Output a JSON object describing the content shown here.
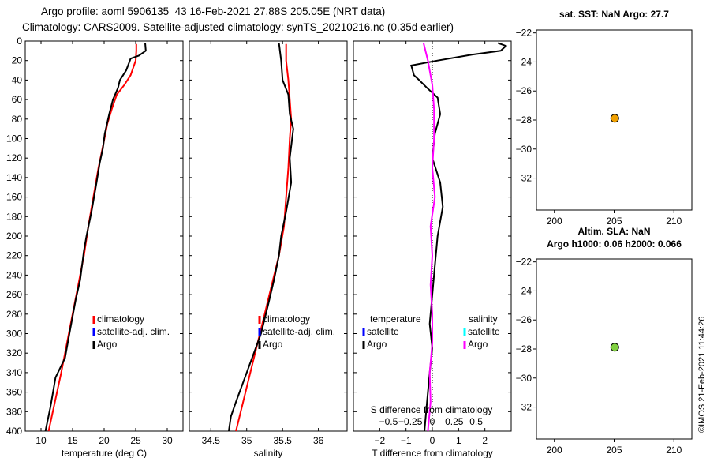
{
  "header": {
    "title_line1": "Argo profile: aoml 5906135_43 16-Feb-2021 27.88S 205.05E (NRT data)",
    "title_line2": "Climatology: CARS2009. Satellite-adjusted climatology: synTS_20210216.nc (0.35d earlier)"
  },
  "watermark": "©IMOS 21-Feb-2021 11:44:26",
  "chart_data": [
    {
      "type": "line",
      "id": "temperature",
      "xlabel": "temperature (deg C)",
      "ylabel": "",
      "xlim": [
        7.5,
        32.5
      ],
      "ylim": [
        400,
        0
      ],
      "xticks": [
        10,
        15,
        20,
        25,
        30
      ],
      "yticks": [
        0,
        20,
        40,
        60,
        80,
        100,
        120,
        140,
        160,
        180,
        200,
        220,
        240,
        260,
        280,
        300,
        320,
        340,
        360,
        380,
        400
      ],
      "legend": [
        "climatology",
        "satellite-adj. clim.",
        "Argo"
      ],
      "legend_colors": [
        "#ff0000",
        "#0000ff",
        "#000000"
      ],
      "series": [
        {
          "name": "climatology",
          "color": "#ff0000",
          "points": [
            [
              25.1,
              3
            ],
            [
              25.1,
              10
            ],
            [
              25.0,
              20
            ],
            [
              24.2,
              35
            ],
            [
              23.2,
              45
            ],
            [
              22.0,
              55
            ],
            [
              21.2,
              70
            ],
            [
              20.5,
              85
            ],
            [
              19.9,
              105
            ],
            [
              19.1,
              130
            ],
            [
              18.3,
              160
            ],
            [
              17.5,
              190
            ],
            [
              16.8,
              220
            ],
            [
              15.9,
              250
            ],
            [
              15.0,
              280
            ],
            [
              14.1,
              310
            ],
            [
              13.2,
              340
            ],
            [
              12.2,
              370
            ],
            [
              11.2,
              400
            ]
          ]
        },
        {
          "name": "Argo",
          "color": "#000000",
          "points": [
            [
              26.5,
              2
            ],
            [
              26.6,
              10
            ],
            [
              25.5,
              15
            ],
            [
              24.2,
              18
            ],
            [
              23.5,
              30
            ],
            [
              22.5,
              40
            ],
            [
              22.2,
              48
            ],
            [
              21.4,
              60
            ],
            [
              20.8,
              75
            ],
            [
              20.1,
              95
            ],
            [
              19.8,
              110
            ],
            [
              19.3,
              125
            ],
            [
              18.8,
              145
            ],
            [
              18.0,
              175
            ],
            [
              17.2,
              200
            ],
            [
              16.8,
              215
            ],
            [
              16.2,
              245
            ],
            [
              15.5,
              265
            ],
            [
              14.5,
              300
            ],
            [
              13.8,
              325
            ],
            [
              12.3,
              345
            ],
            [
              11.5,
              375
            ],
            [
              10.7,
              400
            ]
          ]
        }
      ]
    },
    {
      "type": "line",
      "id": "salinity",
      "xlabel": "salinity",
      "xlim": [
        34.2,
        36.4
      ],
      "ylim": [
        400,
        0
      ],
      "xticks": [
        34.5,
        35,
        35.5,
        36
      ],
      "legend": [
        "climatology",
        "satellite-adj. clim.",
        "Argo"
      ],
      "legend_colors": [
        "#ff0000",
        "#0000ff",
        "#000000"
      ],
      "series": [
        {
          "name": "climatology",
          "color": "#ff0000",
          "points": [
            [
              35.55,
              3
            ],
            [
              35.55,
              20
            ],
            [
              35.58,
              40
            ],
            [
              35.6,
              60
            ],
            [
              35.62,
              80
            ],
            [
              35.6,
              100
            ],
            [
              35.58,
              130
            ],
            [
              35.55,
              160
            ],
            [
              35.52,
              190
            ],
            [
              35.45,
              220
            ],
            [
              35.35,
              250
            ],
            [
              35.25,
              280
            ],
            [
              35.15,
              310
            ],
            [
              35.05,
              340
            ],
            [
              34.95,
              370
            ],
            [
              34.85,
              400
            ]
          ]
        },
        {
          "name": "Argo",
          "color": "#000000",
          "points": [
            [
              35.45,
              2
            ],
            [
              35.48,
              20
            ],
            [
              35.5,
              40
            ],
            [
              35.58,
              55
            ],
            [
              35.6,
              75
            ],
            [
              35.65,
              90
            ],
            [
              35.6,
              120
            ],
            [
              35.62,
              145
            ],
            [
              35.55,
              175
            ],
            [
              35.48,
              200
            ],
            [
              35.45,
              220
            ],
            [
              35.38,
              245
            ],
            [
              35.3,
              270
            ],
            [
              35.2,
              300
            ],
            [
              35.05,
              330
            ],
            [
              34.95,
              350
            ],
            [
              34.85,
              370
            ],
            [
              34.78,
              385
            ],
            [
              34.75,
              400
            ]
          ]
        }
      ]
    },
    {
      "type": "line",
      "id": "difference",
      "xlabel": "T difference from climatology",
      "xlabel_top": "S difference from climatology",
      "xlim": [
        -3,
        3
      ],
      "xlim_top": [
        -0.9,
        0.9
      ],
      "ylim": [
        400,
        0
      ],
      "xticks": [
        -2,
        -1,
        0,
        1,
        2
      ],
      "xticks_top": [
        -0.5,
        -0.25,
        0,
        0.25,
        0.5
      ],
      "legend_temperature_title": "temperature",
      "legend_salinity_title": "salinity",
      "legend_temperature": [
        "satellite",
        "Argo"
      ],
      "legend_temperature_colors": [
        "#0000ff",
        "#000000"
      ],
      "legend_salinity": [
        "satellite",
        "Argo"
      ],
      "legend_salinity_colors": [
        "#00ffff",
        "#ff00ff"
      ],
      "series": [
        {
          "name": "T difference (Argo)",
          "color": "#000000",
          "points": [
            [
              2.5,
              2
            ],
            [
              2.8,
              5
            ],
            [
              2.6,
              10
            ],
            [
              1.5,
              14
            ],
            [
              0.2,
              20
            ],
            [
              -0.8,
              25
            ],
            [
              -0.7,
              35
            ],
            [
              -0.5,
              40
            ],
            [
              -0.2,
              48
            ],
            [
              0.2,
              58
            ],
            [
              0.3,
              75
            ],
            [
              0.1,
              95
            ],
            [
              0.0,
              120
            ],
            [
              0.3,
              145
            ],
            [
              0.4,
              170
            ],
            [
              0.2,
              200
            ],
            [
              0.1,
              230
            ],
            [
              0.0,
              260
            ],
            [
              -0.1,
              290
            ],
            [
              0.0,
              315
            ],
            [
              -0.1,
              340
            ],
            [
              -0.2,
              370
            ],
            [
              -0.3,
              400
            ]
          ]
        },
        {
          "name": "S difference (Argo)",
          "color": "#ff00ff",
          "points": [
            [
              -0.1,
              2
            ],
            [
              -0.05,
              20
            ],
            [
              0.0,
              45
            ],
            [
              0.02,
              70
            ],
            [
              0.02,
              100
            ],
            [
              0.0,
              130
            ],
            [
              0.03,
              160
            ],
            [
              -0.02,
              190
            ],
            [
              0.0,
              220
            ],
            [
              -0.02,
              250
            ],
            [
              0.0,
              280
            ],
            [
              0.0,
              310
            ],
            [
              -0.03,
              340
            ],
            [
              -0.02,
              370
            ],
            [
              -0.05,
              400
            ]
          ]
        }
      ]
    },
    {
      "type": "scatter",
      "id": "sst",
      "title": "sat. SST: NaN Argo: 27.7",
      "xlim": [
        198.5,
        211.5
      ],
      "ylim": [
        -34.2,
        -21.8
      ],
      "xticks": [
        200,
        205,
        210
      ],
      "yticks": [
        -22,
        -24,
        -26,
        -28,
        -30,
        -32
      ],
      "points": [
        [
          205.05,
          -27.88
        ]
      ],
      "marker_color": "#f0a000"
    },
    {
      "type": "scatter",
      "id": "sla",
      "title": "Altim. SLA: NaN",
      "subtitle": "Argo h1000: 0.06 h2000: 0.066",
      "xlim": [
        198.5,
        211.5
      ],
      "ylim": [
        -34.2,
        -21.8
      ],
      "xticks": [
        200,
        205,
        210
      ],
      "yticks": [
        -22,
        -24,
        -26,
        -28,
        -30,
        -32
      ],
      "points": [
        [
          205.05,
          -27.88
        ]
      ],
      "marker_color": "#80d040"
    }
  ]
}
